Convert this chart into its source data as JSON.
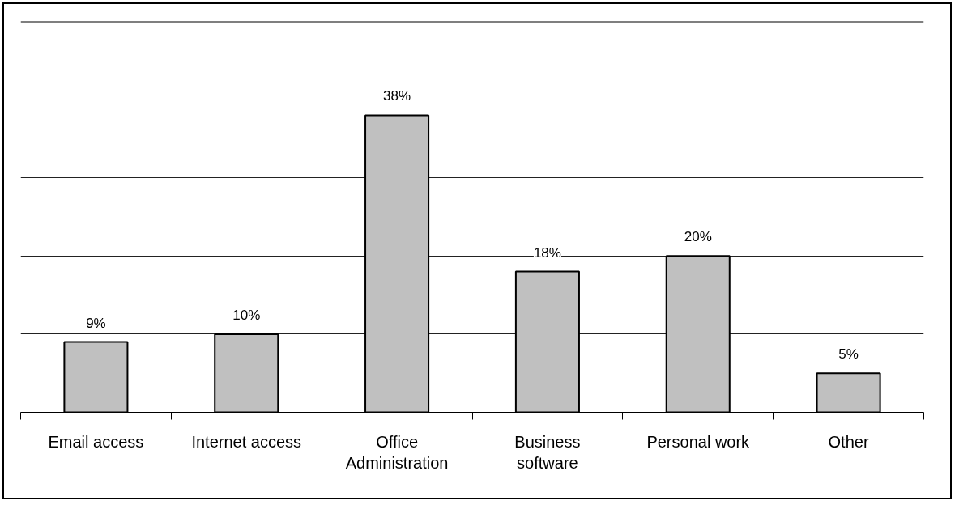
{
  "chart_data": {
    "type": "bar",
    "categories": [
      "Email access",
      "Internet access",
      "Office Administration",
      "Business software",
      "Personal work",
      "Other"
    ],
    "values": [
      9,
      10,
      38,
      18,
      20,
      5
    ],
    "value_labels": [
      "9%",
      "10%",
      "38%",
      "18%",
      "20%",
      "5%"
    ],
    "color": "#c0c0c0",
    "ylim": [
      0,
      50
    ],
    "yticks": [
      {
        "value": 0,
        "label": null
      },
      {
        "value": 10,
        "label": null
      },
      {
        "value": 20,
        "label": null
      },
      {
        "value": 30,
        "label": null
      },
      {
        "value": 40,
        "label": null
      },
      {
        "value": 50,
        "label": null
      }
    ],
    "grid": "y",
    "tick_labels": "x"
  }
}
